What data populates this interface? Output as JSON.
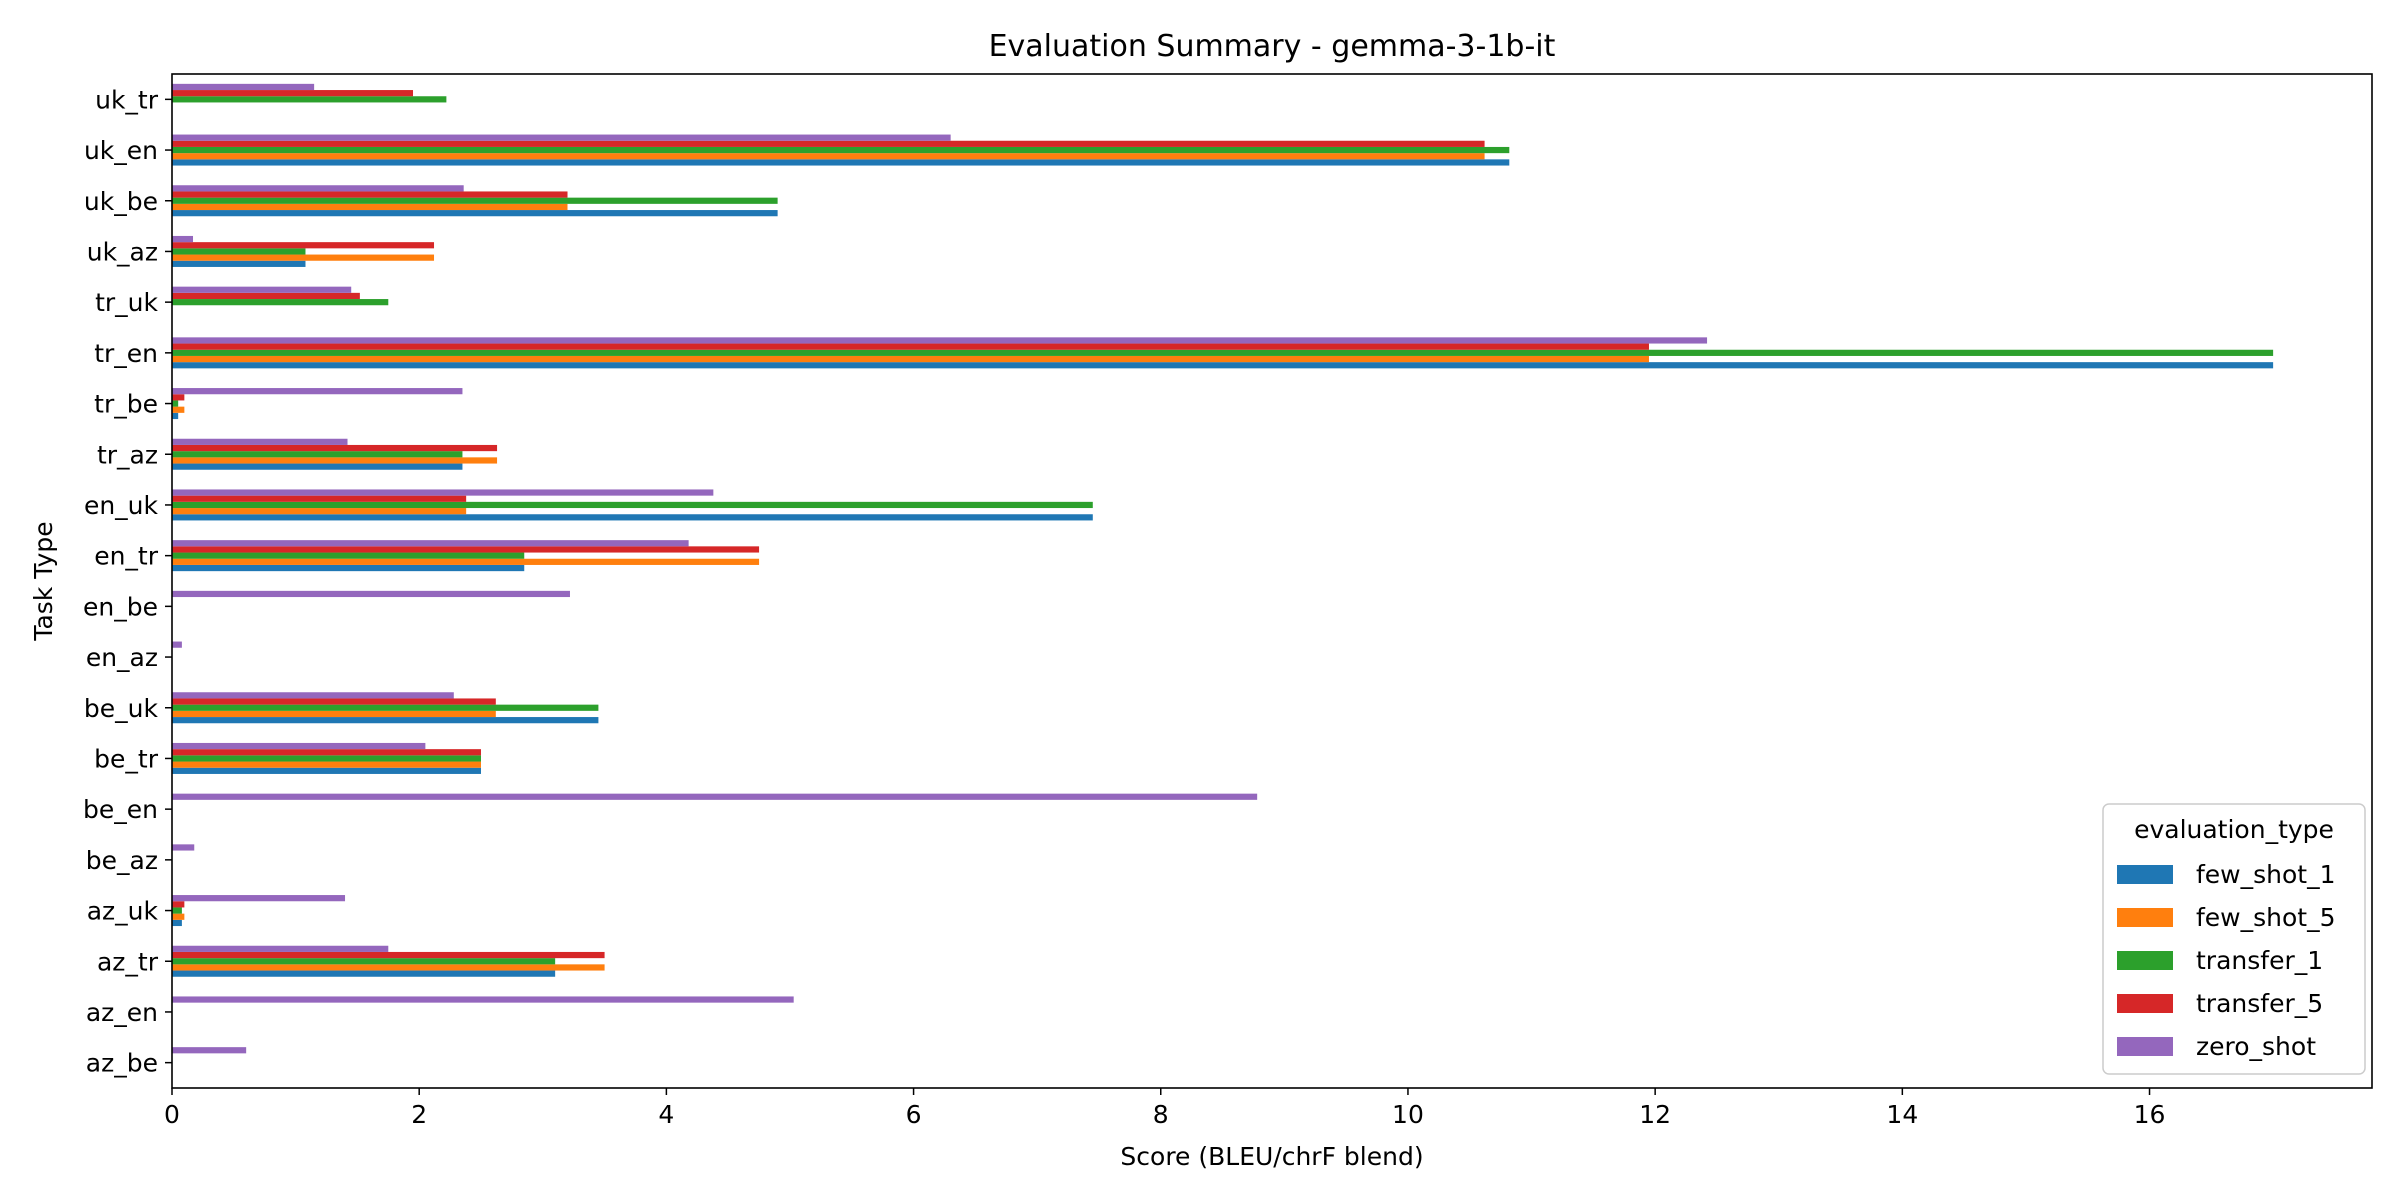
{
  "chart_data": {
    "type": "bar",
    "orientation": "horizontal",
    "title": "Evaluation Summary - gemma-3-1b-it",
    "xlabel": "Score (BLEU/chrF blend)",
    "ylabel": "Task Type",
    "xlim": [
      0,
      17.8
    ],
    "xticks": [
      0,
      2,
      4,
      6,
      8,
      10,
      12,
      14,
      16
    ],
    "grid": false,
    "legend": {
      "title": "evaluation_type",
      "position": "lower-right"
    },
    "categories": [
      "az_be",
      "az_en",
      "az_tr",
      "az_uk",
      "be_az",
      "be_en",
      "be_tr",
      "be_uk",
      "en_az",
      "en_be",
      "en_tr",
      "en_uk",
      "tr_az",
      "tr_be",
      "tr_en",
      "tr_uk",
      "uk_az",
      "uk_be",
      "uk_en",
      "uk_tr"
    ],
    "series": [
      {
        "name": "few_shot_1",
        "color": "#1f77b4",
        "values": [
          0,
          0,
          3.1,
          0.08,
          0,
          0,
          2.5,
          3.45,
          0,
          0,
          2.85,
          7.45,
          2.35,
          0.05,
          17.0,
          0,
          1.08,
          4.9,
          10.82,
          0
        ]
      },
      {
        "name": "few_shot_5",
        "color": "#ff7f0e",
        "values": [
          0,
          0,
          3.5,
          0.1,
          0,
          0,
          2.5,
          2.62,
          0,
          0,
          4.75,
          2.38,
          2.63,
          0.1,
          11.95,
          0,
          2.12,
          3.2,
          10.62,
          0
        ]
      },
      {
        "name": "transfer_1",
        "color": "#2ca02c",
        "values": [
          0,
          0,
          3.1,
          0.08,
          0,
          0,
          2.5,
          3.45,
          0,
          0,
          2.85,
          7.45,
          2.35,
          0.05,
          17.0,
          1.75,
          1.08,
          4.9,
          10.82,
          2.22
        ]
      },
      {
        "name": "transfer_5",
        "color": "#d62728",
        "values": [
          0,
          0,
          3.5,
          0.1,
          0,
          0,
          2.5,
          2.62,
          0,
          0,
          4.75,
          2.38,
          2.63,
          0.1,
          11.95,
          1.52,
          2.12,
          3.2,
          10.62,
          1.95
        ]
      },
      {
        "name": "zero_shot",
        "color": "#9467bd",
        "values": [
          0.6,
          5.03,
          1.75,
          1.4,
          0.18,
          8.78,
          2.05,
          2.28,
          0.08,
          3.22,
          4.18,
          4.38,
          1.42,
          2.35,
          12.42,
          1.45,
          0.17,
          2.36,
          6.3,
          1.15
        ]
      }
    ]
  }
}
